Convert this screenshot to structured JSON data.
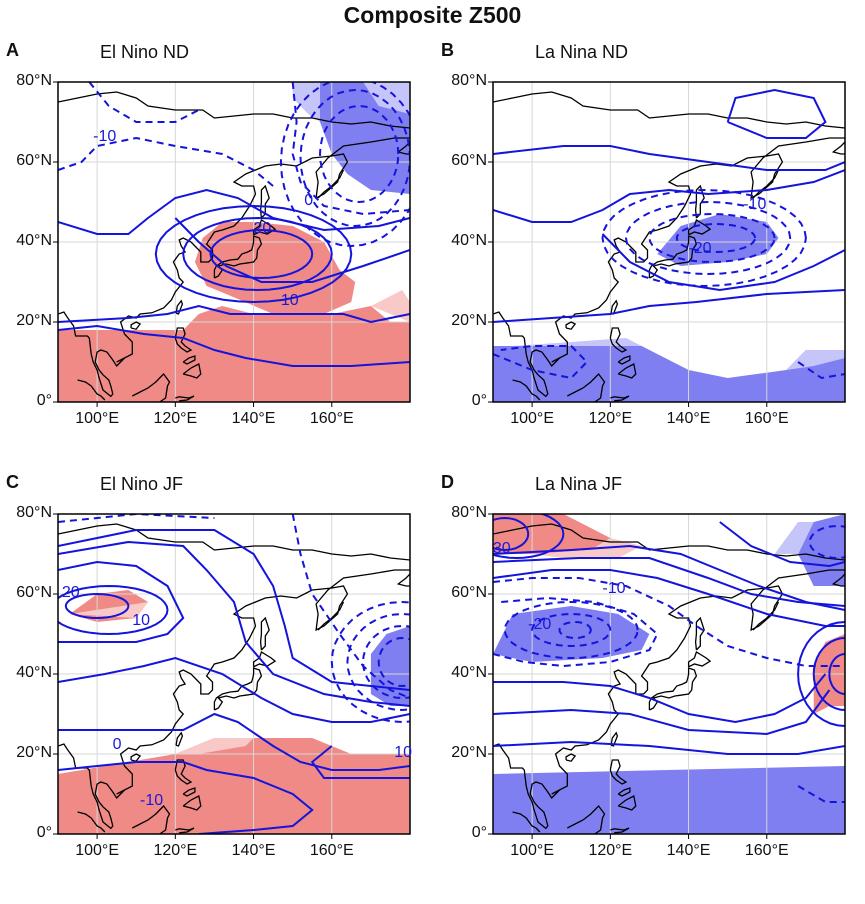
{
  "figure_title": "Composite Z500",
  "colors": {
    "contour": "#1414dc",
    "positive_shade": "#f08a86",
    "positive_shade_light": "#f8c9c6",
    "negative_shade": "#7f7ff2",
    "negative_shade_light": "#c5c5fa",
    "coast": "#000000",
    "grid": "#d7d7d7"
  },
  "axes": {
    "x_ticks": [
      "100°E",
      "120°E",
      "140°E",
      "160°E"
    ],
    "y_ticks": [
      "80°N",
      "60°N",
      "40°N",
      "20°N",
      "0°"
    ],
    "lon_range": [
      90,
      180
    ],
    "lat_range": [
      0,
      80
    ]
  },
  "panels": [
    {
      "id": "A",
      "title": "El Nino ND",
      "contour_labels": [
        "-10",
        "0",
        "20",
        "10"
      ],
      "positive_shaded_regions": [
        "around Japan 25-45°N 130-165°E",
        "tropics 0-18°N"
      ],
      "negative_shaded_regions": [
        "Okhotsk / Kamchatka 50-80°N 160-180°E"
      ]
    },
    {
      "id": "B",
      "title": "La Nina ND",
      "contour_labels": [
        "-10",
        "-20"
      ],
      "positive_shaded_regions": [],
      "negative_shaded_regions": [
        "east of Japan 35-45°N 130-165°E",
        "tropics 0-15°N"
      ]
    },
    {
      "id": "C",
      "title": "El Nino JF",
      "contour_labels": [
        "20",
        "10",
        "0",
        "-10",
        "10"
      ],
      "positive_shaded_regions": [
        "Mongolia 55-60°N 95-110°E",
        "tropics 0-25°N"
      ],
      "negative_shaded_regions": [
        "North Pacific 35-50°N 170-180°E"
      ]
    },
    {
      "id": "D",
      "title": "La Nina JF",
      "contour_labels": [
        "30",
        "-20",
        "-10"
      ],
      "positive_shaded_regions": [
        "Siberia 70-80°N 90-120°E",
        "North Pacific 35-45°N 175-180°E"
      ],
      "negative_shaded_regions": [
        "Mongolia 45-55°N 95-130°E",
        "Bering 70-80°N 170-180°E",
        "tropics 0-15°N"
      ]
    }
  ]
}
